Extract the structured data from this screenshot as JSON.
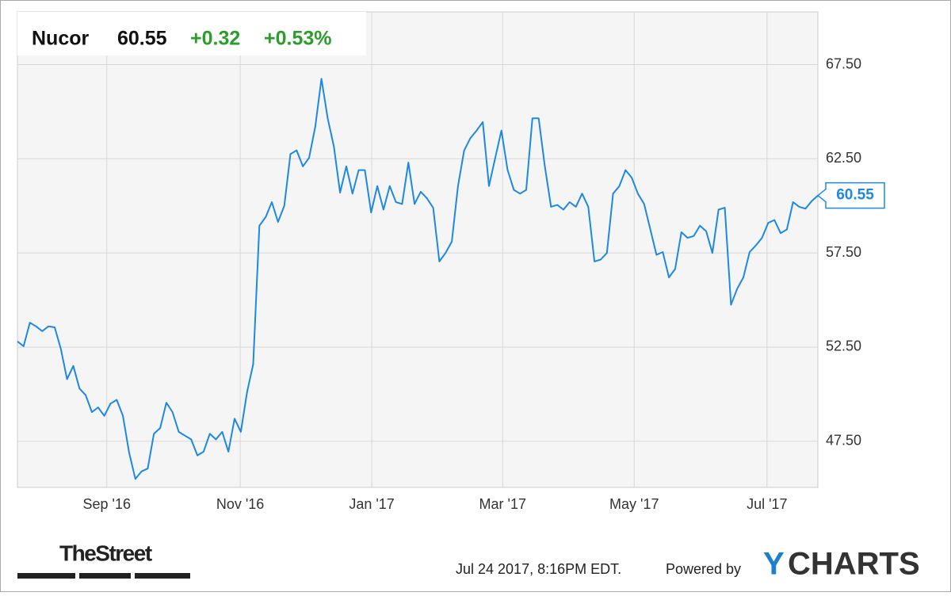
{
  "chart_data": {
    "type": "line",
    "header": {
      "name": "Nucor",
      "price": "60.55",
      "change": "+0.32",
      "change_pct": "+0.53%"
    },
    "color": "#1e88e5",
    "grid": true,
    "values": [
      52.8,
      52.55,
      53.8,
      53.6,
      53.35,
      53.6,
      53.55,
      52.4,
      50.8,
      51.5,
      50.3,
      49.95,
      49.05,
      49.3,
      48.85,
      49.5,
      49.7,
      48.85,
      46.9,
      45.5,
      45.9,
      46.05,
      47.9,
      48.2,
      49.55,
      49.05,
      48.0,
      47.8,
      47.6,
      46.75,
      46.95,
      47.9,
      47.6,
      48.0,
      46.95,
      48.7,
      48.0,
      50.1,
      51.6,
      58.95,
      59.4,
      60.2,
      59.15,
      60.0,
      62.75,
      62.95,
      62.1,
      62.55,
      64.2,
      66.75,
      64.65,
      63.15,
      60.7,
      62.1,
      60.65,
      61.9,
      61.9,
      59.65,
      61.05,
      59.8,
      61.05,
      60.2,
      60.1,
      62.3,
      60.1,
      60.75,
      60.4,
      59.9,
      57.05,
      57.5,
      58.1,
      61.05,
      62.95,
      63.6,
      64.0,
      64.45,
      61.05,
      62.55,
      64.0,
      61.9,
      60.85,
      60.65,
      60.85,
      64.65,
      64.65,
      62.1,
      59.95,
      60.05,
      59.8,
      60.2,
      59.95,
      60.65,
      59.95,
      57.05,
      57.15,
      57.5,
      60.65,
      61.05,
      61.9,
      61.5,
      60.65,
      60.1,
      58.75,
      57.4,
      57.55,
      56.2,
      56.65,
      58.6,
      58.3,
      58.4,
      58.95,
      58.65,
      57.5,
      59.8,
      59.9,
      54.75,
      55.6,
      56.2,
      57.55,
      57.9,
      58.3,
      59.1,
      59.25,
      58.55,
      58.75,
      60.2,
      59.95,
      59.85,
      60.25,
      60.55
    ],
    "xlim": [
      0,
      129
    ],
    "xticks": [
      {
        "value": 14.4,
        "label": "Sep '16"
      },
      {
        "value": 35.9,
        "label": "Nov '16"
      },
      {
        "value": 57.1,
        "label": "Jan '17"
      },
      {
        "value": 78.2,
        "label": "Mar '17"
      },
      {
        "value": 99.4,
        "label": "May '17"
      },
      {
        "value": 120.8,
        "label": "Jul '17"
      }
    ],
    "ylim": [
      45.05,
      70.3
    ],
    "yticks": [
      {
        "value": 47.5,
        "label": "47.50"
      },
      {
        "value": 52.5,
        "label": "52.50"
      },
      {
        "value": 57.5,
        "label": "57.50"
      },
      {
        "value": 62.5,
        "label": "62.50"
      },
      {
        "value": 67.5,
        "label": "67.50"
      }
    ],
    "footer": {
      "source": "TheStreet",
      "timestamp": "Jul 24 2017, 8:16PM EDT.",
      "powered": "Powered by",
      "brand_parts": [
        "Y",
        "CHARTS"
      ]
    }
  }
}
